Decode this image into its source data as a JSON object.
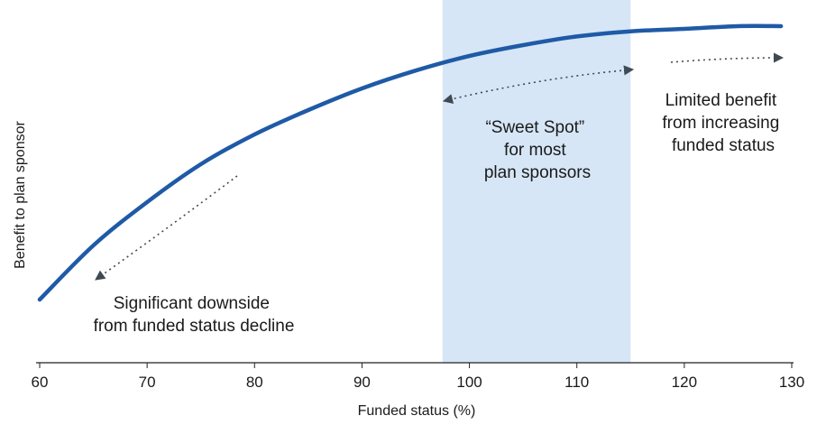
{
  "chart_data": {
    "type": "line",
    "title": "",
    "xlabel": "Funded status (%)",
    "ylabel": "Benefit to plan sponsor",
    "xlim": [
      60,
      130
    ],
    "x_ticks": [
      60,
      70,
      80,
      90,
      100,
      110,
      120,
      130
    ],
    "x_tick_labels": [
      "60",
      "70",
      "80",
      "90",
      "100",
      "110",
      "120",
      "130"
    ],
    "y_ticks": [],
    "grid": false,
    "legend": "none",
    "series": [
      {
        "color": "#1f5aa6",
        "x": [
          60,
          65,
          70,
          75,
          80,
          85,
          90,
          95,
          100,
          105,
          110,
          115,
          120,
          125,
          129
        ],
        "y": [
          0.0,
          0.2,
          0.36,
          0.5,
          0.61,
          0.7,
          0.78,
          0.846,
          0.9,
          0.94,
          0.972,
          0.991,
          1.0,
          1.01,
          1.01
        ]
      }
    ],
    "shaded_region": {
      "x_range": [
        97.5,
        115
      ],
      "color": "#d6e6f6"
    },
    "annotations": [
      {
        "lines": [
          "Significant downside",
          "from funded status decline"
        ]
      },
      {
        "lines": [
          "“Sweet Spot”",
          "for most",
          "plan sponsors"
        ]
      },
      {
        "lines": [
          "Limited benefit",
          "from increasing",
          "funded status"
        ]
      }
    ],
    "arrow_color": "#3f4a55"
  }
}
